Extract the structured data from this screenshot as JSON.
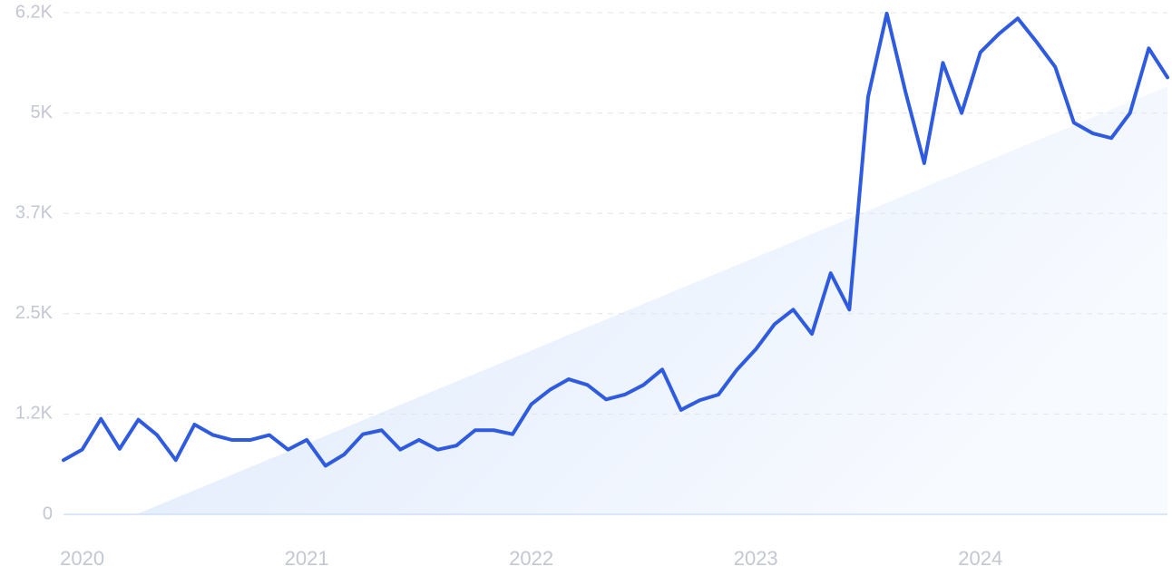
{
  "chart_data": {
    "type": "line",
    "categories": [
      null,
      "2020",
      null,
      null,
      null,
      null,
      null,
      null,
      null,
      null,
      null,
      null,
      null,
      "2021",
      null,
      null,
      null,
      null,
      null,
      null,
      null,
      null,
      null,
      null,
      null,
      "2022",
      null,
      null,
      null,
      null,
      null,
      null,
      null,
      null,
      null,
      null,
      null,
      "2023",
      null,
      null,
      null,
      null,
      null,
      null,
      null,
      null,
      null,
      null,
      null,
      "2024",
      null,
      null,
      null,
      null,
      null,
      null,
      null,
      null,
      null,
      null
    ],
    "series": [
      {
        "color": "#2f5be0",
        "values": [
          670,
          800,
          1180,
          810,
          1170,
          980,
          670,
          1110,
          980,
          920,
          920,
          980,
          800,
          920,
          600,
          740,
          990,
          1040,
          800,
          920,
          800,
          850,
          1040,
          1040,
          990,
          1360,
          1540,
          1670,
          1600,
          1420,
          1480,
          1600,
          1790,
          1290,
          1410,
          1480,
          1790,
          2040,
          2350,
          2530,
          2230,
          2980,
          2530,
          5160,
          6190,
          5220,
          4340,
          5580,
          4960,
          5710,
          5940,
          6130,
          5840,
          5530,
          4840,
          4710,
          4650,
          4960,
          5760,
          5400
        ]
      }
    ],
    "trend": {
      "color": "#e3eefc",
      "x": [
        3.9,
        59
      ],
      "values": [
        0,
        5290
      ]
    },
    "ylim": [
      0,
      6200
    ],
    "yticks": [
      0,
      {
        "value": 1240,
        "label": "1.2K"
      },
      {
        "value": 2480,
        "label": "2.5K"
      },
      {
        "value": 3720,
        "label": "3.7K"
      },
      {
        "value": 4960,
        "label": "5K"
      },
      {
        "value": 6200,
        "label": "6.2K"
      }
    ],
    "grid": true
  }
}
